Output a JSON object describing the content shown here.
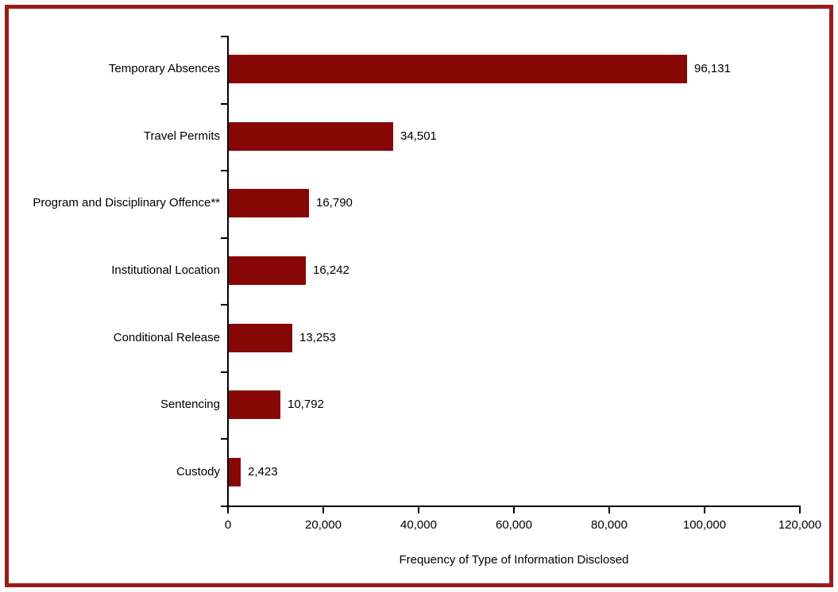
{
  "page": {
    "background": "#ffffff",
    "frame_color": "#9a1b1b"
  },
  "chart_data": {
    "type": "bar",
    "orientation": "horizontal",
    "title": "",
    "xlabel": "Frequency of Type of Information Disclosed",
    "ylabel": "",
    "categories": [
      "Temporary Absences",
      "Travel Permits",
      "Program and Disciplinary Offence**",
      "Institutional Location",
      "Conditional Release",
      "Sentencing",
      "Custody"
    ],
    "values": [
      96131,
      34501,
      16790,
      16242,
      13253,
      10792,
      2423
    ],
    "value_labels": [
      "96,131",
      "34,501",
      "16,790",
      "16,242",
      "13,253",
      "10,792",
      "2,423"
    ],
    "xlim": [
      0,
      120000
    ],
    "x_ticks": [
      0,
      20000,
      40000,
      60000,
      80000,
      100000,
      120000
    ],
    "x_tick_labels": [
      "0",
      "20,000",
      "40,000",
      "60,000",
      "80,000",
      "100,000",
      "120,000"
    ],
    "bar_color": "#870707",
    "axis_color": "#000000",
    "grid": false,
    "legend": false
  }
}
